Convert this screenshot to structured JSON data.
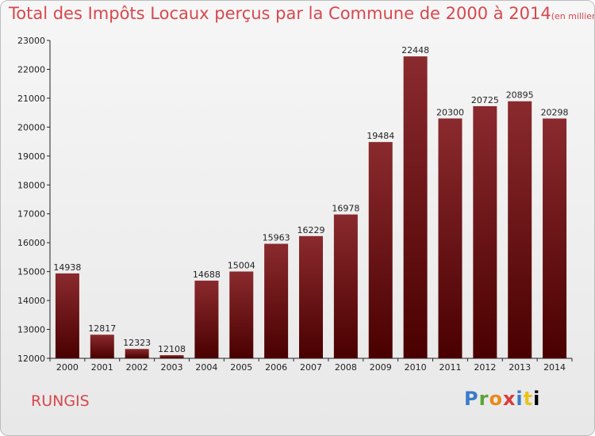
{
  "chart_data": {
    "type": "bar",
    "title": "Total des Impôts Locaux perçus par la Commune de 2000 à 2014",
    "title_unit": "(en milliers d'€)",
    "categories": [
      "2000",
      "2001",
      "2002",
      "2003",
      "2004",
      "2005",
      "2006",
      "2007",
      "2008",
      "2009",
      "2010",
      "2011",
      "2012",
      "2013",
      "2014"
    ],
    "values": [
      14938,
      12817,
      12323,
      12108,
      14688,
      15004,
      15963,
      16229,
      16978,
      19484,
      22448,
      20300,
      20725,
      20895,
      20298
    ],
    "value_labels": [
      "14938",
      "12817",
      "12323",
      "12108",
      "14688",
      "15004",
      "15963",
      "16229",
      "16978",
      "19484",
      "22448",
      "20300",
      "20725",
      "20895",
      "20298"
    ],
    "ylim": [
      12000,
      23000
    ],
    "yticks": [
      12000,
      13000,
      14000,
      15000,
      16000,
      17000,
      18000,
      19000,
      20000,
      21000,
      22000,
      23000
    ],
    "ytick_labels": [
      "12000",
      "13000",
      "14000",
      "15000",
      "16000",
      "17000",
      "18000",
      "19000",
      "20000",
      "21000",
      "22000",
      "23000"
    ],
    "grid": false,
    "xlabel": "",
    "ylabel": "",
    "bar_color_top": "#8a2a2e",
    "bar_color_bottom": "#4a0000"
  },
  "footer": {
    "commune": "RUNGIS",
    "logo": "Proxiti"
  },
  "colors": {
    "title": "#d8474d",
    "commune": "#d8474d"
  }
}
